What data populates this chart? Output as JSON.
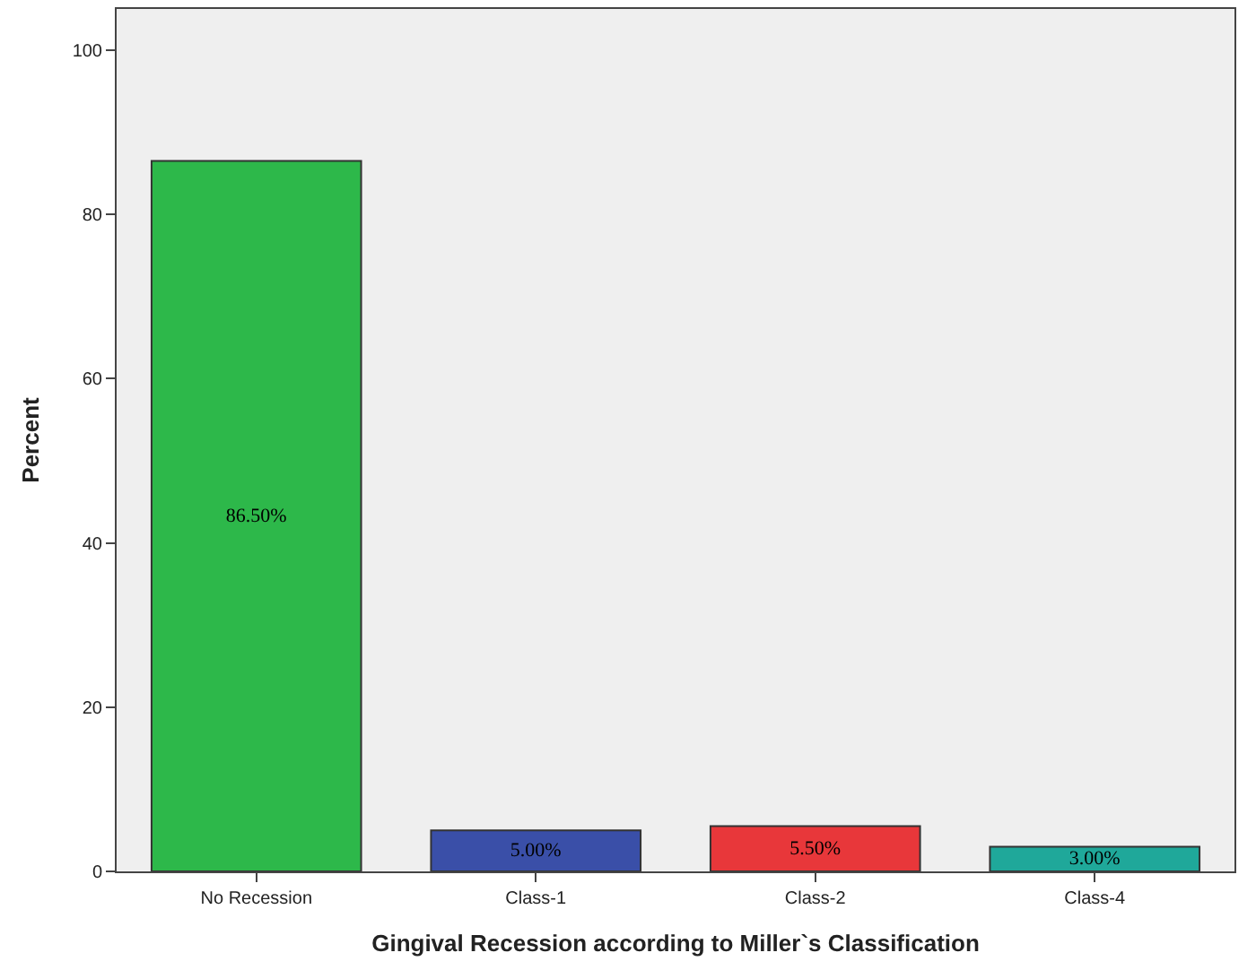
{
  "chart_data": {
    "type": "bar",
    "xlabel": "Gingival Recession according to Miller`s Classification",
    "ylabel": "Percent",
    "categories": [
      "No Recession",
      "Class-1",
      "Class-2",
      "Class-4"
    ],
    "values": [
      86.5,
      5.0,
      5.5,
      3.0
    ],
    "value_labels": [
      "86.50%",
      "5.00%",
      "5.50%",
      "3.00%"
    ],
    "colors": [
      "#2db84a",
      "#3a4fa8",
      "#e8373a",
      "#1fa89a"
    ],
    "ylim": [
      0,
      105
    ],
    "yticks": [
      0,
      20,
      40,
      60,
      80,
      100
    ],
    "grid": false,
    "legend": false
  }
}
